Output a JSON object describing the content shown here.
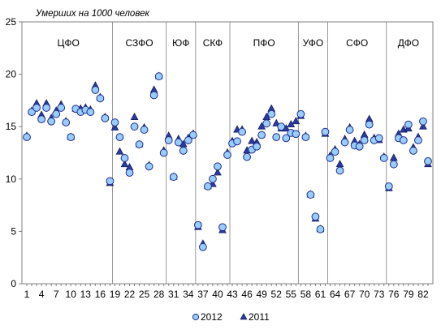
{
  "chart_data": {
    "type": "scatter",
    "ylabel": "Умерших на 1000 человек",
    "ylim": [
      0,
      25
    ],
    "yticks": [
      0,
      5,
      10,
      15,
      20,
      25
    ],
    "xlim": [
      0,
      84
    ],
    "xticks": [
      1,
      4,
      7,
      10,
      13,
      16,
      19,
      22,
      25,
      28,
      31,
      34,
      37,
      40,
      43,
      46,
      49,
      52,
      55,
      58,
      61,
      64,
      67,
      70,
      73,
      76,
      79,
      82
    ],
    "grid": false,
    "legend": "bottom",
    "regions": [
      {
        "label": "ЦФО",
        "start": 0.5,
        "end": 18.5
      },
      {
        "label": "СЗФО",
        "start": 18.5,
        "end": 29.5
      },
      {
        "label": "ЮФ",
        "start": 29.5,
        "end": 35.5
      },
      {
        "label": "СКФ",
        "start": 35.5,
        "end": 42.5
      },
      {
        "label": "ПФО",
        "start": 42.5,
        "end": 56.5
      },
      {
        "label": "УФО",
        "start": 56.5,
        "end": 62.5
      },
      {
        "label": "СФО",
        "start": 62.5,
        "end": 74.5
      },
      {
        "label": "ДФО",
        "start": 74.5,
        "end": 83.5
      }
    ],
    "series": [
      {
        "name": "2012",
        "marker": "circle",
        "color": "#99ccff",
        "stroke": "#1f2d8a",
        "points": [
          [
            1,
            14.0
          ],
          [
            2,
            16.4
          ],
          [
            3,
            16.8
          ],
          [
            4,
            15.7
          ],
          [
            5,
            16.8
          ],
          [
            6,
            15.5
          ],
          [
            7,
            16.2
          ],
          [
            8,
            16.8
          ],
          [
            9,
            15.4
          ],
          [
            10,
            14.0
          ],
          [
            11,
            16.7
          ],
          [
            12,
            16.4
          ],
          [
            13,
            16.6
          ],
          [
            14,
            16.4
          ],
          [
            15,
            18.5
          ],
          [
            16,
            17.7
          ],
          [
            17,
            15.8
          ],
          [
            18,
            9.8
          ],
          [
            19,
            15.4
          ],
          [
            20,
            14.0
          ],
          [
            21,
            12.0
          ],
          [
            22,
            10.6
          ],
          [
            23,
            15.0
          ],
          [
            24,
            13.3
          ],
          [
            25,
            14.7
          ],
          [
            26,
            11.2
          ],
          [
            27,
            18.0
          ],
          [
            28,
            19.8
          ],
          [
            29,
            12.5
          ],
          [
            30,
            13.7
          ],
          [
            31,
            10.2
          ],
          [
            32,
            13.5
          ],
          [
            33,
            12.7
          ],
          [
            34,
            13.7
          ],
          [
            35,
            14.2
          ],
          [
            36,
            5.6
          ],
          [
            37,
            3.5
          ],
          [
            38,
            9.3
          ],
          [
            39,
            10.0
          ],
          [
            40,
            11.2
          ],
          [
            41,
            5.4
          ],
          [
            42,
            12.3
          ],
          [
            43,
            13.4
          ],
          [
            44,
            13.6
          ],
          [
            45,
            14.5
          ],
          [
            46,
            12.1
          ],
          [
            47,
            12.8
          ],
          [
            48,
            13.1
          ],
          [
            49,
            14.2
          ],
          [
            50,
            15.3
          ],
          [
            51,
            16.2
          ],
          [
            52,
            14.0
          ],
          [
            53,
            15.0
          ],
          [
            54,
            13.9
          ],
          [
            55,
            14.4
          ],
          [
            56,
            14.3
          ],
          [
            57,
            16.2
          ],
          [
            58,
            14.0
          ],
          [
            59,
            8.5
          ],
          [
            60,
            6.4
          ],
          [
            61,
            5.2
          ],
          [
            62,
            14.5
          ],
          [
            63,
            12.0
          ],
          [
            64,
            12.6
          ],
          [
            65,
            10.8
          ],
          [
            66,
            13.5
          ],
          [
            67,
            14.7
          ],
          [
            68,
            13.2
          ],
          [
            69,
            13.1
          ],
          [
            70,
            13.7
          ],
          [
            71,
            15.2
          ],
          [
            72,
            13.7
          ],
          [
            73,
            13.9
          ],
          [
            74,
            12.0
          ],
          [
            75,
            9.3
          ],
          [
            76,
            11.4
          ],
          [
            77,
            13.9
          ],
          [
            78,
            13.7
          ],
          [
            79,
            15.2
          ],
          [
            80,
            12.7
          ],
          [
            81,
            13.7
          ],
          [
            82,
            15.5
          ],
          [
            83,
            11.7
          ]
        ]
      },
      {
        "name": "2011",
        "marker": "triangle",
        "color": "#2b3a9e",
        "stroke": "#141f66",
        "points": [
          [
            1,
            14.1
          ],
          [
            2,
            16.5
          ],
          [
            3,
            17.2
          ],
          [
            4,
            16.1
          ],
          [
            5,
            17.2
          ],
          [
            6,
            15.8
          ],
          [
            7,
            16.5
          ],
          [
            8,
            17.1
          ],
          [
            9,
            15.5
          ],
          [
            10,
            14.0
          ],
          [
            11,
            16.7
          ],
          [
            12,
            16.7
          ],
          [
            13,
            16.8
          ],
          [
            14,
            16.6
          ],
          [
            15,
            18.9
          ],
          [
            16,
            17.8
          ],
          [
            17,
            15.9
          ],
          [
            18,
            9.6
          ],
          [
            19,
            14.9
          ],
          [
            20,
            12.6
          ],
          [
            21,
            11.4
          ],
          [
            22,
            11.1
          ],
          [
            23,
            15.9
          ],
          [
            24,
            13.3
          ],
          [
            25,
            14.9
          ],
          [
            26,
            11.3
          ],
          [
            27,
            18.5
          ],
          [
            28,
            19.8
          ],
          [
            29,
            12.7
          ],
          [
            30,
            14.1
          ],
          [
            31,
            10.2
          ],
          [
            32,
            13.8
          ],
          [
            33,
            13.3
          ],
          [
            34,
            13.9
          ],
          [
            35,
            14.3
          ],
          [
            36,
            5.4
          ],
          [
            37,
            3.8
          ],
          [
            38,
            9.3
          ],
          [
            39,
            9.5
          ],
          [
            40,
            10.6
          ],
          [
            41,
            5.1
          ],
          [
            42,
            12.5
          ],
          [
            43,
            13.6
          ],
          [
            44,
            14.7
          ],
          [
            45,
            14.7
          ],
          [
            46,
            12.7
          ],
          [
            47,
            13.6
          ],
          [
            48,
            13.5
          ],
          [
            49,
            15.0
          ],
          [
            50,
            15.9
          ],
          [
            51,
            16.7
          ],
          [
            52,
            15.3
          ],
          [
            53,
            14.8
          ],
          [
            54,
            14.8
          ],
          [
            55,
            15.2
          ],
          [
            56,
            15.5
          ],
          [
            57,
            16.0
          ],
          [
            58,
            14.1
          ],
          [
            59,
            8.5
          ],
          [
            60,
            6.2
          ],
          [
            61,
            5.2
          ],
          [
            62,
            14.3
          ],
          [
            63,
            12.2
          ],
          [
            64,
            12.8
          ],
          [
            65,
            11.4
          ],
          [
            66,
            13.8
          ],
          [
            67,
            14.9
          ],
          [
            68,
            13.6
          ],
          [
            69,
            13.3
          ],
          [
            70,
            14.2
          ],
          [
            71,
            15.7
          ],
          [
            72,
            13.9
          ],
          [
            73,
            13.7
          ],
          [
            74,
            12.1
          ],
          [
            75,
            9.1
          ],
          [
            76,
            12.0
          ],
          [
            77,
            14.3
          ],
          [
            78,
            14.7
          ],
          [
            79,
            14.8
          ],
          [
            80,
            13.0
          ],
          [
            81,
            14.0
          ],
          [
            82,
            15.0
          ],
          [
            83,
            11.4
          ]
        ]
      }
    ]
  }
}
